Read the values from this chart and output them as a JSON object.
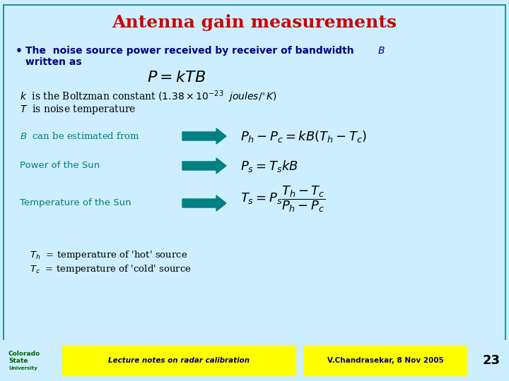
{
  "bg_color": "#cceeff",
  "title": "Antenna gain measurements",
  "title_color": "#cc0000",
  "title_fontsize": 18,
  "bullet_color": "#000080",
  "formula_color": "#000000",
  "arrow_color": "#008080",
  "label_color": "#008080",
  "footer_bg": "#ffff00",
  "footer_text1": "Lecture notes on radar calibration",
  "footer_text2": "V.Chandrasekar, 8 Nov 2005",
  "footer_page": "23",
  "footer_color": "#000080",
  "slide_border_color": "#008080"
}
